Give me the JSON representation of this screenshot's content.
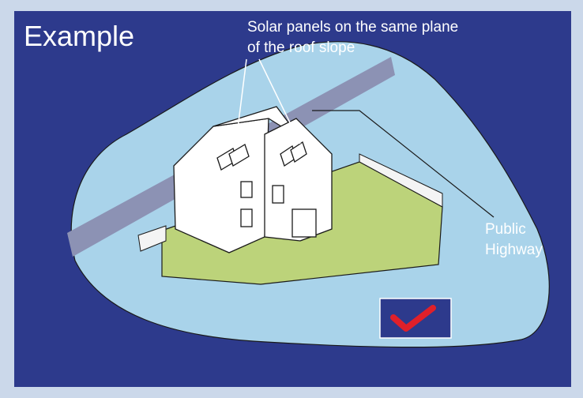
{
  "title": "Example",
  "annotations": [
    {
      "lines": [
        "Solar panels on the same plane",
        "of the roof slope"
      ]
    },
    {
      "lines": [
        "Public",
        "Highway"
      ]
    }
  ]
}
